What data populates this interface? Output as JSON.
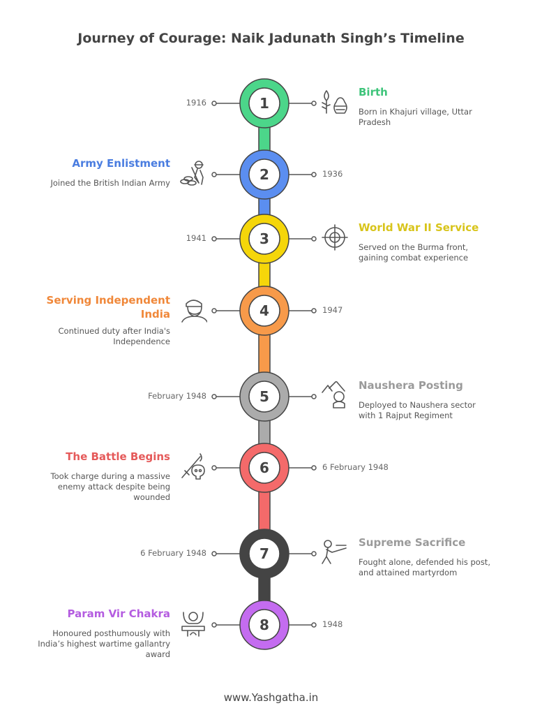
{
  "title": "Journey of Courage: Naik Jadunath Singh’s Timeline",
  "footer": "www.Yashgatha.in",
  "events": [
    {
      "number": "1",
      "date": "1916",
      "title": "Birth",
      "description": "Born in Khajuri village, Uttar Pradesh",
      "side": "right",
      "color": "#4cd68a",
      "title_color": "#3ec47a",
      "icon": "plant-pot-icon"
    },
    {
      "number": "2",
      "date": "1936",
      "title": "Army Enlistment",
      "description": "Joined the British Indian Army",
      "side": "left",
      "color": "#5b8ef0",
      "title_color": "#4a7de0",
      "icon": "soldier-sandbags-icon"
    },
    {
      "number": "3",
      "date": "1941",
      "title": "World War II Service",
      "description": "Served on the Burma front, gaining combat experience",
      "side": "right",
      "color": "#f5d60a",
      "title_color": "#d8c41a",
      "icon": "crosshair-icon"
    },
    {
      "number": "4",
      "date": "1947",
      "title": "Serving Independent India",
      "description": "Continued duty after India's Independence",
      "side": "left",
      "color": "#f79a4a",
      "title_color": "#f0883a",
      "icon": "turbaned-man-icon"
    },
    {
      "number": "5",
      "date": "February 1948",
      "title": "Naushera Posting",
      "description": "Deployed to Naushera sector with 1 Rajput Regiment",
      "side": "right",
      "color": "#ababab",
      "title_color": "#9a9a9a",
      "icon": "mountain-soldier-icon"
    },
    {
      "number": "6",
      "date": "6 February 1948",
      "title": "The Battle Begins",
      "description": "Took charge during a massive enemy attack despite being wounded",
      "side": "left",
      "color": "#f46a6a",
      "title_color": "#e55a5a",
      "icon": "sword-skull-icon"
    },
    {
      "number": "7",
      "date": "6 February 1948",
      "title": "Supreme Sacrifice",
      "description": "Fought alone, defended his post, and attained martyrdom",
      "side": "right",
      "color": "#444444",
      "title_color": "#9a9a9a",
      "icon": "rifleman-icon"
    },
    {
      "number": "8",
      "date": "1948",
      "title": "Param Vir Chakra",
      "description": "Honoured posthumously with India’s highest wartime gallantry award",
      "side": "left",
      "color": "#c46cf0",
      "title_color": "#b45ce0",
      "icon": "honoured-person-icon"
    }
  ]
}
